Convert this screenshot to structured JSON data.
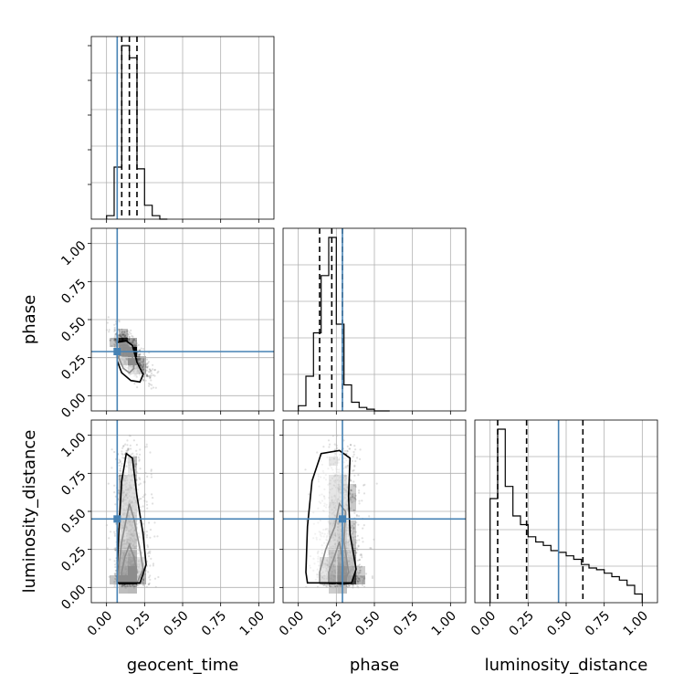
{
  "chart_data": {
    "type": "corner",
    "parameters": [
      "geocent_time",
      "phase",
      "luminosity_distance"
    ],
    "axis_range": [
      -0.1,
      1.1
    ],
    "ticks": [
      0.0,
      0.25,
      0.5,
      0.75,
      1.0
    ],
    "tick_labels": [
      "0.00",
      "0.25",
      "0.50",
      "0.75",
      "1.00"
    ],
    "grid": true,
    "colors": {
      "truth": "#4682b4",
      "hist": "#000000",
      "samples": "#000000"
    },
    "truths": {
      "geocent_time": 0.07,
      "phase": 0.29,
      "luminosity_distance": 0.45
    },
    "histograms": [
      {
        "parameter": "geocent_time",
        "bin_edges": [
          0.0,
          0.05,
          0.1,
          0.15,
          0.2,
          0.25,
          0.3,
          0.35,
          0.4
        ],
        "counts": [
          0.02,
          0.3,
          1.0,
          0.93,
          0.29,
          0.08,
          0.02,
          0.0
        ],
        "quantiles": [
          0.1,
          0.15,
          0.2
        ]
      },
      {
        "parameter": "phase",
        "bin_edges": [
          0.0,
          0.05,
          0.1,
          0.15,
          0.2,
          0.25,
          0.3,
          0.35,
          0.4,
          0.45,
          0.5,
          0.55,
          0.6
        ],
        "counts": [
          0.03,
          0.2,
          0.45,
          0.78,
          1.0,
          0.5,
          0.15,
          0.05,
          0.02,
          0.01,
          0.0,
          0.0
        ],
        "quantiles": [
          0.14,
          0.22,
          0.29
        ]
      },
      {
        "parameter": "luminosity_distance",
        "bin_edges": [
          0.0,
          0.05,
          0.1,
          0.15,
          0.2,
          0.25,
          0.3,
          0.35,
          0.4,
          0.45,
          0.5,
          0.55,
          0.6,
          0.65,
          0.7,
          0.75,
          0.8,
          0.85,
          0.9,
          0.95,
          1.0
        ],
        "counts": [
          0.6,
          1.0,
          0.67,
          0.5,
          0.45,
          0.38,
          0.35,
          0.33,
          0.3,
          0.29,
          0.27,
          0.25,
          0.22,
          0.2,
          0.19,
          0.17,
          0.15,
          0.13,
          0.1,
          0.05
        ],
        "quantiles": [
          0.05,
          0.24,
          0.61
        ]
      }
    ],
    "scatter_panels": [
      {
        "x": "geocent_time",
        "y": "phase",
        "density_center": [
          0.13,
          0.22
        ],
        "contours": [
          [
            [
              0.09,
              0.33
            ],
            [
              0.14,
              0.33
            ],
            [
              0.17,
              0.26
            ],
            [
              0.18,
              0.18
            ],
            [
              0.15,
              0.15
            ],
            [
              0.11,
              0.18
            ],
            [
              0.08,
              0.25
            ]
          ],
          [
            [
              0.07,
              0.35
            ],
            [
              0.13,
              0.36
            ],
            [
              0.17,
              0.33
            ],
            [
              0.2,
              0.22
            ],
            [
              0.24,
              0.14
            ],
            [
              0.22,
              0.09
            ],
            [
              0.16,
              0.1
            ],
            [
              0.1,
              0.15
            ],
            [
              0.07,
              0.23
            ]
          ]
        ]
      },
      {
        "x": "geocent_time",
        "y": "luminosity_distance",
        "density_center": [
          0.14,
          0.06
        ],
        "contours": [
          [
            [
              0.1,
              0.03
            ],
            [
              0.18,
              0.03
            ],
            [
              0.2,
              0.1
            ],
            [
              0.18,
              0.2
            ],
            [
              0.15,
              0.28
            ],
            [
              0.12,
              0.2
            ],
            [
              0.1,
              0.1
            ]
          ],
          [
            [
              0.08,
              0.03
            ],
            [
              0.2,
              0.03
            ],
            [
              0.24,
              0.12
            ],
            [
              0.22,
              0.25
            ],
            [
              0.18,
              0.45
            ],
            [
              0.15,
              0.55
            ],
            [
              0.13,
              0.45
            ],
            [
              0.1,
              0.3
            ],
            [
              0.08,
              0.12
            ]
          ],
          [
            [
              0.07,
              0.03
            ],
            [
              0.22,
              0.03
            ],
            [
              0.26,
              0.15
            ],
            [
              0.24,
              0.35
            ],
            [
              0.2,
              0.6
            ],
            [
              0.17,
              0.85
            ],
            [
              0.13,
              0.88
            ],
            [
              0.1,
              0.7
            ],
            [
              0.08,
              0.35
            ],
            [
              0.07,
              0.1
            ]
          ]
        ]
      },
      {
        "x": "phase",
        "y": "luminosity_distance",
        "density_center": [
          0.24,
          0.06
        ],
        "contours": [
          [
            [
              0.2,
              0.03
            ],
            [
              0.28,
              0.03
            ],
            [
              0.3,
              0.12
            ],
            [
              0.27,
              0.3
            ],
            [
              0.23,
              0.18
            ],
            [
              0.2,
              0.1
            ]
          ],
          [
            [
              0.14,
              0.03
            ],
            [
              0.3,
              0.03
            ],
            [
              0.33,
              0.1
            ],
            [
              0.3,
              0.3
            ],
            [
              0.31,
              0.5
            ],
            [
              0.27,
              0.55
            ],
            [
              0.24,
              0.4
            ],
            [
              0.18,
              0.25
            ],
            [
              0.14,
              0.1
            ]
          ],
          [
            [
              0.06,
              0.03
            ],
            [
              0.35,
              0.03
            ],
            [
              0.38,
              0.12
            ],
            [
              0.34,
              0.35
            ],
            [
              0.33,
              0.6
            ],
            [
              0.34,
              0.85
            ],
            [
              0.27,
              0.9
            ],
            [
              0.15,
              0.88
            ],
            [
              0.09,
              0.7
            ],
            [
              0.06,
              0.4
            ],
            [
              0.05,
              0.1
            ]
          ]
        ]
      }
    ]
  }
}
